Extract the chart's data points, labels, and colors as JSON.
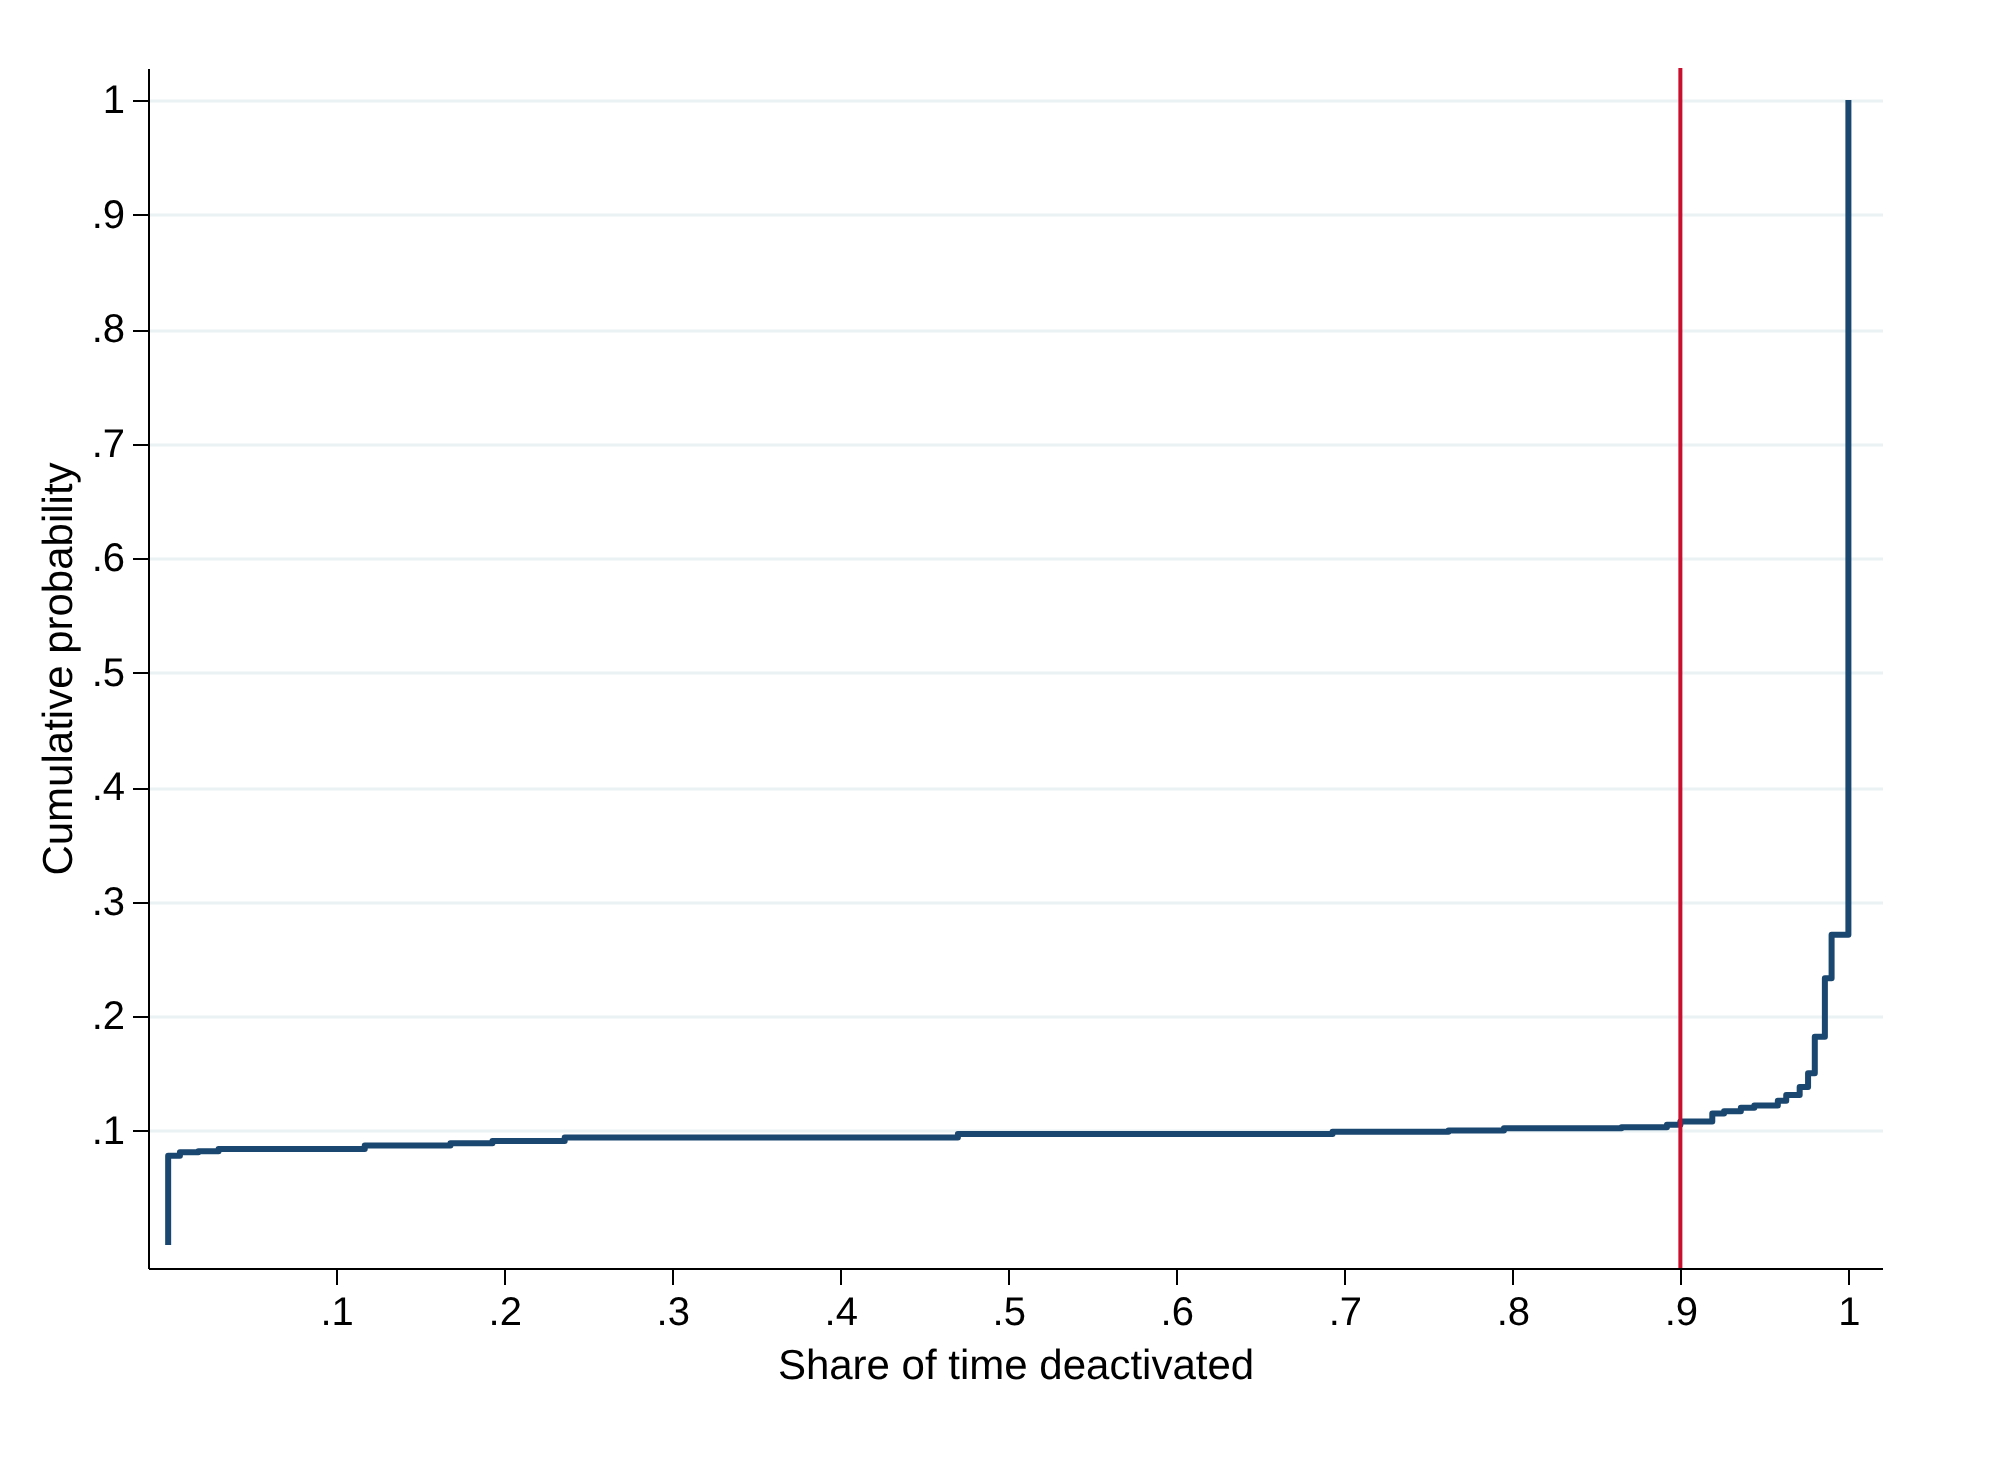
{
  "chart_data": {
    "type": "step",
    "xlabel": "Share of time deactivated",
    "ylabel": "Cumulative probability",
    "x": [
      0,
      0,
      0.007,
      0.018,
      0.03,
      0.117,
      0.168,
      0.193,
      0.236,
      0.47,
      0.693,
      0.762,
      0.795,
      0.865,
      0.892,
      0.9,
      0.919,
      0.926,
      0.936,
      0.944,
      0.958,
      0.963,
      0.971,
      0.976,
      0.98,
      0.986,
      0.99,
      1,
      1
    ],
    "series": [
      {
        "color": "#1a476f",
        "values": [
          0,
          0.078,
          0.081,
          0.082,
          0.084,
          0.087,
          0.089,
          0.091,
          0.094,
          0.097,
          0.099,
          0.1,
          0.102,
          0.103,
          0.105,
          0.108,
          0.115,
          0.117,
          0.12,
          0.122,
          0.126,
          0.131,
          0.138,
          0.15,
          0.182,
          0.233,
          0.271,
          0.273,
          1
        ]
      }
    ],
    "xlim": [
      -0.012,
      1.02
    ],
    "ylim": [
      -0.02,
      1.028
    ],
    "xticks": [
      {
        "value": 0.1,
        "label": ".1"
      },
      {
        "value": 0.2,
        "label": ".2"
      },
      {
        "value": 0.3,
        "label": ".3"
      },
      {
        "value": 0.4,
        "label": ".4"
      },
      {
        "value": 0.5,
        "label": ".5"
      },
      {
        "value": 0.6,
        "label": ".6"
      },
      {
        "value": 0.7,
        "label": ".7"
      },
      {
        "value": 0.8,
        "label": ".8"
      },
      {
        "value": 0.9,
        "label": ".9"
      },
      1
    ],
    "yticks": [
      {
        "value": 0.1,
        "label": ".1"
      },
      {
        "value": 0.2,
        "label": ".2"
      },
      {
        "value": 0.3,
        "label": ".3"
      },
      {
        "value": 0.4,
        "label": ".4"
      },
      {
        "value": 0.5,
        "label": ".5"
      },
      {
        "value": 0.6,
        "label": ".6"
      },
      {
        "value": 0.7,
        "label": ".7"
      },
      {
        "value": 0.8,
        "label": ".8"
      },
      {
        "value": 0.9,
        "label": ".9"
      },
      1
    ],
    "grid": "y",
    "ref_lines": [
      {
        "axis": "x",
        "value": 0.9,
        "color": "#c8102e"
      }
    ]
  }
}
